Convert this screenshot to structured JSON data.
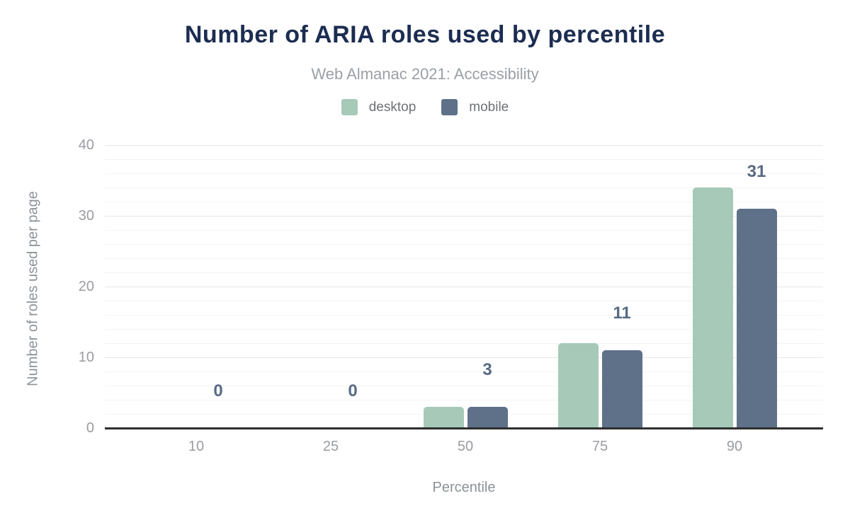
{
  "title": "Number of ARIA roles used by percentile",
  "subtitle": "Web Almanac 2021: Accessibility",
  "colors": {
    "title": "#1c2d51",
    "desktop": "#a6c9b8",
    "mobile": "#5f7089",
    "value_label": "#586a85",
    "axis_text": "#9a9ca1",
    "axis_title_text": "#8c9298",
    "baseline": "#2e2e2e",
    "grid_minor": "#f4f4f4",
    "grid_major": "#e6e6e6"
  },
  "chart_data": {
    "type": "bar",
    "title": "Number of ARIA roles used by percentile",
    "subtitle": "Web Almanac 2021: Accessibility",
    "categories": [
      "10",
      "25",
      "50",
      "75",
      "90"
    ],
    "series": [
      {
        "name": "desktop",
        "color": "#a6c9b8",
        "values": [
          0,
          0,
          3,
          12,
          34
        ]
      },
      {
        "name": "mobile",
        "color": "#5f7089",
        "values": [
          0,
          0,
          3,
          11,
          31
        ]
      }
    ],
    "data_labels": {
      "series": "mobile",
      "values": [
        "0",
        "0",
        "3",
        "11",
        "31"
      ]
    },
    "xlabel": "Percentile",
    "ylabel": "Number of roles used per page",
    "ylim": [
      0,
      40
    ],
    "yticks": [
      0,
      10,
      20,
      30,
      40
    ],
    "minor_grid_step": 2,
    "grid": true,
    "legend_position": "top"
  }
}
